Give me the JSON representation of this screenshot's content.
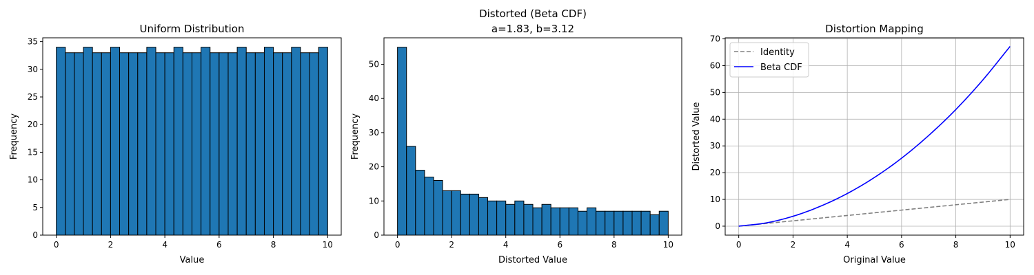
{
  "chart_data": [
    {
      "type": "bar",
      "title": "Uniform Distribution",
      "xlabel": "Value",
      "ylabel": "Frequency",
      "xlim": [
        -0.5,
        10.5
      ],
      "ylim": [
        0,
        35.7
      ],
      "xticks": [
        0,
        2,
        4,
        6,
        8,
        10
      ],
      "yticks": [
        0,
        5,
        10,
        15,
        20,
        25,
        30,
        35
      ],
      "grid": false,
      "bin_range": [
        0,
        10
      ],
      "bar_color": "#1f77b4",
      "edge_color": "#000000",
      "values": [
        34,
        33,
        33,
        34,
        33,
        33,
        34,
        33,
        33,
        33,
        34,
        33,
        33,
        34,
        33,
        33,
        34,
        33,
        33,
        33,
        34,
        33,
        33,
        34,
        33,
        33,
        34,
        33,
        33,
        34
      ]
    },
    {
      "type": "bar",
      "title": "Distorted (Beta CDF)",
      "subtitle": "a=1.83, b=3.12",
      "xlabel": "Distorted Value",
      "ylabel": "Frequency",
      "xlim": [
        -0.5,
        10.5
      ],
      "ylim": [
        0,
        57.75
      ],
      "xticks": [
        0,
        2,
        4,
        6,
        8,
        10
      ],
      "yticks": [
        0,
        10,
        20,
        30,
        40,
        50
      ],
      "grid": false,
      "bin_range": [
        0,
        10
      ],
      "bar_color": "#1f77b4",
      "edge_color": "#000000",
      "values": [
        55,
        26,
        19,
        17,
        16,
        13,
        13,
        12,
        12,
        11,
        10,
        10,
        9,
        10,
        9,
        8,
        9,
        8,
        8,
        8,
        7,
        8,
        7,
        7,
        7,
        7,
        7,
        7,
        6,
        7
      ]
    },
    {
      "type": "line",
      "title": "Distortion Mapping",
      "xlabel": "Original Value",
      "ylabel": "Distorted Value",
      "xlim": [
        -0.5,
        10.5
      ],
      "ylim": [
        -3.35,
        70.4
      ],
      "xticks": [
        0,
        2,
        4,
        6,
        8,
        10
      ],
      "yticks": [
        0,
        10,
        20,
        30,
        40,
        50,
        60,
        70
      ],
      "grid": true,
      "legend": "top-left",
      "x": [
        0,
        1,
        2,
        3,
        4,
        5,
        6,
        7,
        8,
        9,
        10
      ],
      "series": [
        {
          "name": "Identity",
          "color": "#808080",
          "style": "dashed",
          "values": [
            0,
            1,
            2,
            3,
            4,
            5,
            6,
            7,
            8,
            9,
            10
          ]
        },
        {
          "name": "Beta CDF",
          "color": "#0000ff",
          "style": "solid",
          "values": [
            0,
            1.2,
            3.7,
            7.4,
            12.2,
            18.2,
            25.4,
            33.9,
            43.6,
            54.7,
            67.2
          ]
        }
      ]
    }
  ]
}
